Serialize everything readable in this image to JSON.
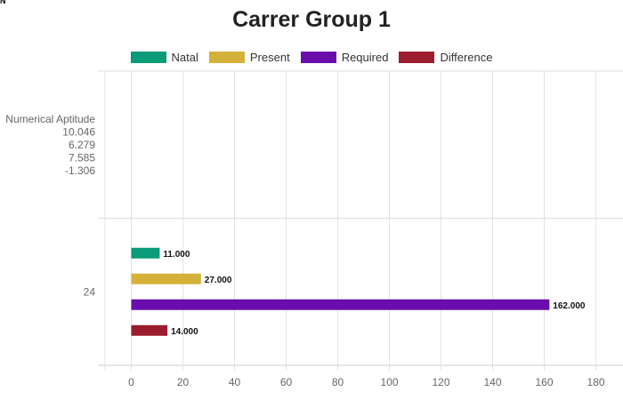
{
  "corner_text": "N",
  "chart_data": {
    "type": "bar",
    "orientation": "horizontal",
    "title": "Carrer Group 1",
    "xlabel": "",
    "ylabel": "",
    "xlim": [
      -10,
      190
    ],
    "x_ticks": [
      0,
      20,
      40,
      60,
      80,
      100,
      120,
      140,
      160,
      180
    ],
    "grid": true,
    "legend_position": "top",
    "categories": [
      {
        "label_lines": [
          "Numerical Aptitude",
          "10.046",
          "6.279",
          "7.585",
          "-1.306"
        ]
      },
      {
        "label_lines": [
          "24"
        ]
      }
    ],
    "series": [
      {
        "name": "Natal",
        "color": "#0a9b78",
        "values": [
          null,
          11
        ]
      },
      {
        "name": "Present",
        "color": "#d4b23a",
        "values": [
          null,
          27
        ]
      },
      {
        "name": "Required",
        "color": "#6a0dad",
        "values": [
          null,
          162
        ]
      },
      {
        "name": "Difference",
        "color": "#9b1c2c",
        "values": [
          null,
          14
        ]
      }
    ],
    "data_labels": [
      [
        null,
        "11.000"
      ],
      [
        null,
        "27.000"
      ],
      [
        null,
        "162.000"
      ],
      [
        null,
        "14.000"
      ]
    ]
  }
}
